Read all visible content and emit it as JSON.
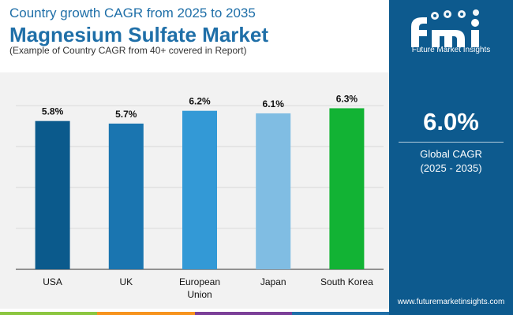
{
  "header": {
    "subtitle": "Country growth CAGR from 2025 to 2035",
    "title": "Magnesium Sulfate Market",
    "note": "(Example of Country CAGR from 40+ covered in Report)"
  },
  "sidebar": {
    "logo_text": "Future Market Insights",
    "cagr_value": "6.0%",
    "cagr_label": "Global CAGR",
    "cagr_period": "(2025 - 2035)",
    "website": "www.futuremarketinsights.com"
  },
  "colors": {
    "sidebar_bg": "#0d5a8e",
    "title": "#1f6fa8",
    "strip": [
      "#8cc63f",
      "#f7931e",
      "#7b3f98",
      "#1f6fa8"
    ]
  },
  "chart_data": {
    "type": "bar",
    "categories": [
      "USA",
      "UK",
      "European Union",
      "Japan",
      "South Korea"
    ],
    "category_lines": [
      [
        "USA"
      ],
      [
        "UK"
      ],
      [
        "European",
        "Union"
      ],
      [
        "Japan"
      ],
      [
        "South Korea"
      ]
    ],
    "values": [
      5.8,
      5.7,
      6.2,
      6.1,
      6.3
    ],
    "value_labels": [
      "5.8%",
      "5.7%",
      "6.2%",
      "6.1%",
      "6.3%"
    ],
    "bar_colors": [
      "#0b5a8c",
      "#1a75b0",
      "#3399d6",
      "#80bde3",
      "#12b334"
    ],
    "title": "",
    "xlabel": "",
    "ylabel": "",
    "ylim": [
      0,
      7.7
    ],
    "gridlines": [
      0,
      1.6,
      3.2,
      4.8,
      6.4
    ],
    "grid": true,
    "y_tick_labels_shown": false
  }
}
